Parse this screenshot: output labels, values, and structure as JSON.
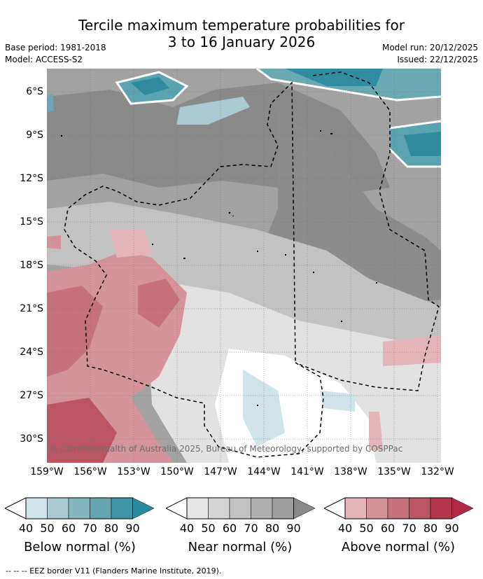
{
  "title": {
    "line1": "Tercile maximum temperature probabilities for",
    "line2": "3 to 16 January 2026"
  },
  "meta": {
    "base_period": "Base period: 1981-2018",
    "model": "Model: ACCESS-S2",
    "model_run": "Model run: 20/12/2025",
    "issued": "Issued: 22/12/2025"
  },
  "map": {
    "lat_labels": [
      "6°S",
      "9°S",
      "12°S",
      "15°S",
      "18°S",
      "21°S",
      "24°S",
      "27°S",
      "30°S"
    ],
    "lon_labels": [
      "159°W",
      "156°W",
      "153°W",
      "150°W",
      "147°W",
      "144°W",
      "141°W",
      "138°W",
      "135°W",
      "132°W"
    ],
    "copyright": "© Commonwealth of Australia 2025, Bureau of Meteorology, supported by COSPPac"
  },
  "legend": {
    "ticks": [
      "40",
      "50",
      "60",
      "70",
      "80",
      "90"
    ],
    "bars": [
      {
        "label": "Below normal (%)",
        "colors": [
          "#cfe3e8",
          "#a9cad1",
          "#86b6c0",
          "#64a4b1",
          "#3f97a6",
          "#2a8b9d"
        ]
      },
      {
        "label": "Near normal (%)",
        "colors": [
          "#e6e6e6",
          "#d4d4d4",
          "#c2c2c2",
          "#b0b0b0",
          "#9e9e9e",
          "#8a8a8a"
        ]
      },
      {
        "label": "Above normal (%)",
        "colors": [
          "#e3b4ba",
          "#d4939b",
          "#c5727d",
          "#bb5564",
          "#b3364a",
          "#b02844"
        ]
      }
    ]
  },
  "footer": "--  --  -- EEZ border V11 (Flanders Marine Institute, 2019)."
}
